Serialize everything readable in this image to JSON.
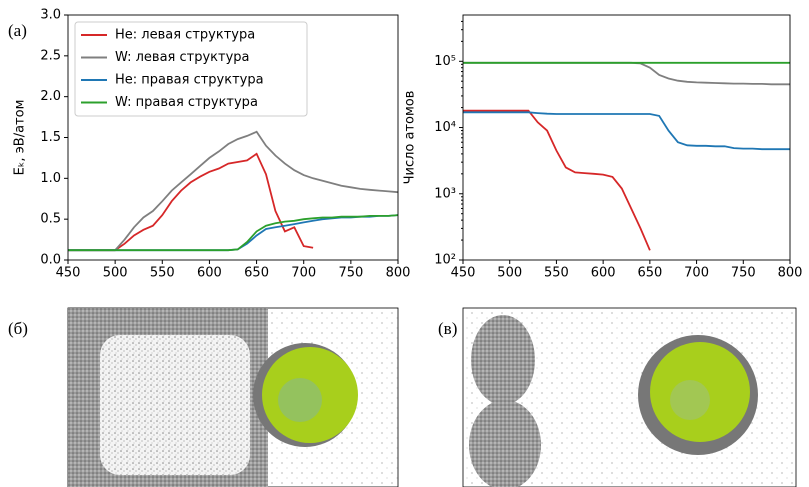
{
  "chart_data": [
    {
      "type": "line",
      "panel_label": "(а)",
      "ylabel": "Eₖ, эВ/атом",
      "log_y": false,
      "legend": "upper left",
      "x": [
        450,
        460,
        470,
        480,
        490,
        500,
        510,
        520,
        530,
        540,
        550,
        560,
        570,
        580,
        590,
        600,
        610,
        620,
        630,
        640,
        650,
        660,
        670,
        680,
        690,
        700,
        710,
        720,
        730,
        740,
        750,
        760,
        770,
        780,
        790,
        800
      ],
      "xlim": [
        450,
        800
      ],
      "xticks": [
        450,
        500,
        550,
        600,
        650,
        700,
        750,
        800
      ],
      "ylim": [
        0,
        3
      ],
      "yticks": [
        {
          "value": 0,
          "label": "0.0"
        },
        0.5,
        {
          "value": 1,
          "label": "1.0"
        },
        1.5,
        {
          "value": 2,
          "label": "2.0"
        },
        2.5,
        {
          "value": 3,
          "label": "3.0"
        }
      ],
      "series": [
        {
          "name": "He: левая структура",
          "color": "#d62728",
          "values": [
            0.12,
            0.12,
            0.12,
            0.12,
            0.12,
            0.12,
            0.2,
            0.3,
            0.37,
            0.42,
            0.55,
            0.72,
            0.85,
            0.95,
            1.02,
            1.08,
            1.12,
            1.18,
            1.2,
            1.22,
            1.3,
            1.05,
            0.6,
            0.35,
            0.4,
            0.17,
            0.15,
            null,
            null,
            null,
            null,
            null,
            null,
            null,
            null,
            null
          ]
        },
        {
          "name": "W: левая структура",
          "color": "#7f7f7f",
          "values": [
            0.12,
            0.12,
            0.12,
            0.12,
            0.12,
            0.12,
            0.25,
            0.4,
            0.52,
            0.6,
            0.72,
            0.85,
            0.95,
            1.05,
            1.15,
            1.25,
            1.33,
            1.42,
            1.48,
            1.52,
            1.57,
            1.4,
            1.28,
            1.18,
            1.1,
            1.04,
            1.0,
            0.97,
            0.94,
            0.91,
            0.89,
            0.87,
            0.86,
            0.85,
            0.84,
            0.83
          ]
        },
        {
          "name": "He: правая структура",
          "color": "#1f77b4",
          "values": [
            0.12,
            0.12,
            0.12,
            0.12,
            0.12,
            0.12,
            0.12,
            0.12,
            0.12,
            0.12,
            0.12,
            0.12,
            0.12,
            0.12,
            0.12,
            0.12,
            0.12,
            0.12,
            0.13,
            0.2,
            0.3,
            0.38,
            0.4,
            0.42,
            0.44,
            0.46,
            0.48,
            0.5,
            0.51,
            0.52,
            0.52,
            0.53,
            0.53,
            0.54,
            0.54,
            0.55
          ]
        },
        {
          "name": "W: правая структура",
          "color": "#2ca02c",
          "values": [
            0.12,
            0.12,
            0.12,
            0.12,
            0.12,
            0.12,
            0.12,
            0.12,
            0.12,
            0.12,
            0.12,
            0.12,
            0.12,
            0.12,
            0.12,
            0.12,
            0.12,
            0.12,
            0.13,
            0.22,
            0.35,
            0.42,
            0.45,
            0.47,
            0.48,
            0.5,
            0.51,
            0.52,
            0.52,
            0.53,
            0.53,
            0.53,
            0.54,
            0.54,
            0.54,
            0.55
          ]
        }
      ]
    },
    {
      "type": "line",
      "ylabel": "Число атомов",
      "log_y": true,
      "x": [
        450,
        460,
        470,
        480,
        490,
        500,
        510,
        520,
        530,
        540,
        550,
        560,
        570,
        580,
        590,
        600,
        610,
        620,
        630,
        640,
        650,
        660,
        670,
        680,
        690,
        700,
        710,
        720,
        730,
        740,
        750,
        760,
        770,
        780,
        790,
        800
      ],
      "xlim": [
        450,
        800
      ],
      "xticks": [
        450,
        500,
        550,
        600,
        650,
        700,
        750,
        800
      ],
      "ylim": [
        100,
        500000
      ],
      "yticks": [
        {
          "value": 100,
          "label": "10²"
        },
        {
          "value": 1000,
          "label": "10³"
        },
        {
          "value": 10000,
          "label": "10⁴"
        },
        {
          "value": 100000,
          "label": "10⁵"
        }
      ],
      "series": [
        {
          "name": "He: левая структура",
          "color": "#d62728",
          "values": [
            18000,
            18000,
            18000,
            18000,
            18000,
            18000,
            18000,
            18000,
            12000,
            9000,
            4500,
            2500,
            2100,
            2050,
            2000,
            1950,
            1800,
            1200,
            600,
            300,
            140,
            null,
            null,
            null,
            null,
            null,
            null,
            null,
            null,
            null,
            null,
            null,
            null,
            null,
            null,
            null
          ]
        },
        {
          "name": "W: левая структура",
          "color": "#7f7f7f",
          "values": [
            95000,
            95000,
            95000,
            95000,
            95000,
            95000,
            95000,
            95000,
            95000,
            95000,
            95000,
            95000,
            95000,
            95000,
            95000,
            95000,
            95000,
            95000,
            95000,
            93000,
            80000,
            62000,
            55000,
            51000,
            49000,
            48000,
            47500,
            47000,
            46500,
            46000,
            46000,
            45500,
            45500,
            45000,
            45000,
            45000
          ]
        },
        {
          "name": "He: правая структура",
          "color": "#1f77b4",
          "values": [
            17000,
            17000,
            17000,
            17000,
            17000,
            17000,
            17000,
            17000,
            16500,
            16200,
            16000,
            16000,
            16000,
            16000,
            16000,
            16000,
            16000,
            16000,
            16000,
            16000,
            16000,
            15000,
            9000,
            6000,
            5400,
            5300,
            5300,
            5200,
            5200,
            4900,
            4800,
            4800,
            4700,
            4700,
            4700,
            4700
          ]
        },
        {
          "name": "W: правая структура",
          "color": "#2ca02c",
          "values": [
            95000,
            95000,
            95000,
            95000,
            95000,
            95000,
            95000,
            95000,
            95000,
            95000,
            95000,
            95000,
            95000,
            95000,
            95000,
            95000,
            95000,
            95000,
            95000,
            95000,
            95000,
            95000,
            95000,
            95000,
            95000,
            95000,
            95000,
            95000,
            95000,
            95000,
            95000,
            95000,
            95000,
            95000,
            95000,
            95000
          ]
        }
      ]
    }
  ],
  "panels": [
    {
      "label": "(б)"
    },
    {
      "label": "(в)"
    }
  ]
}
